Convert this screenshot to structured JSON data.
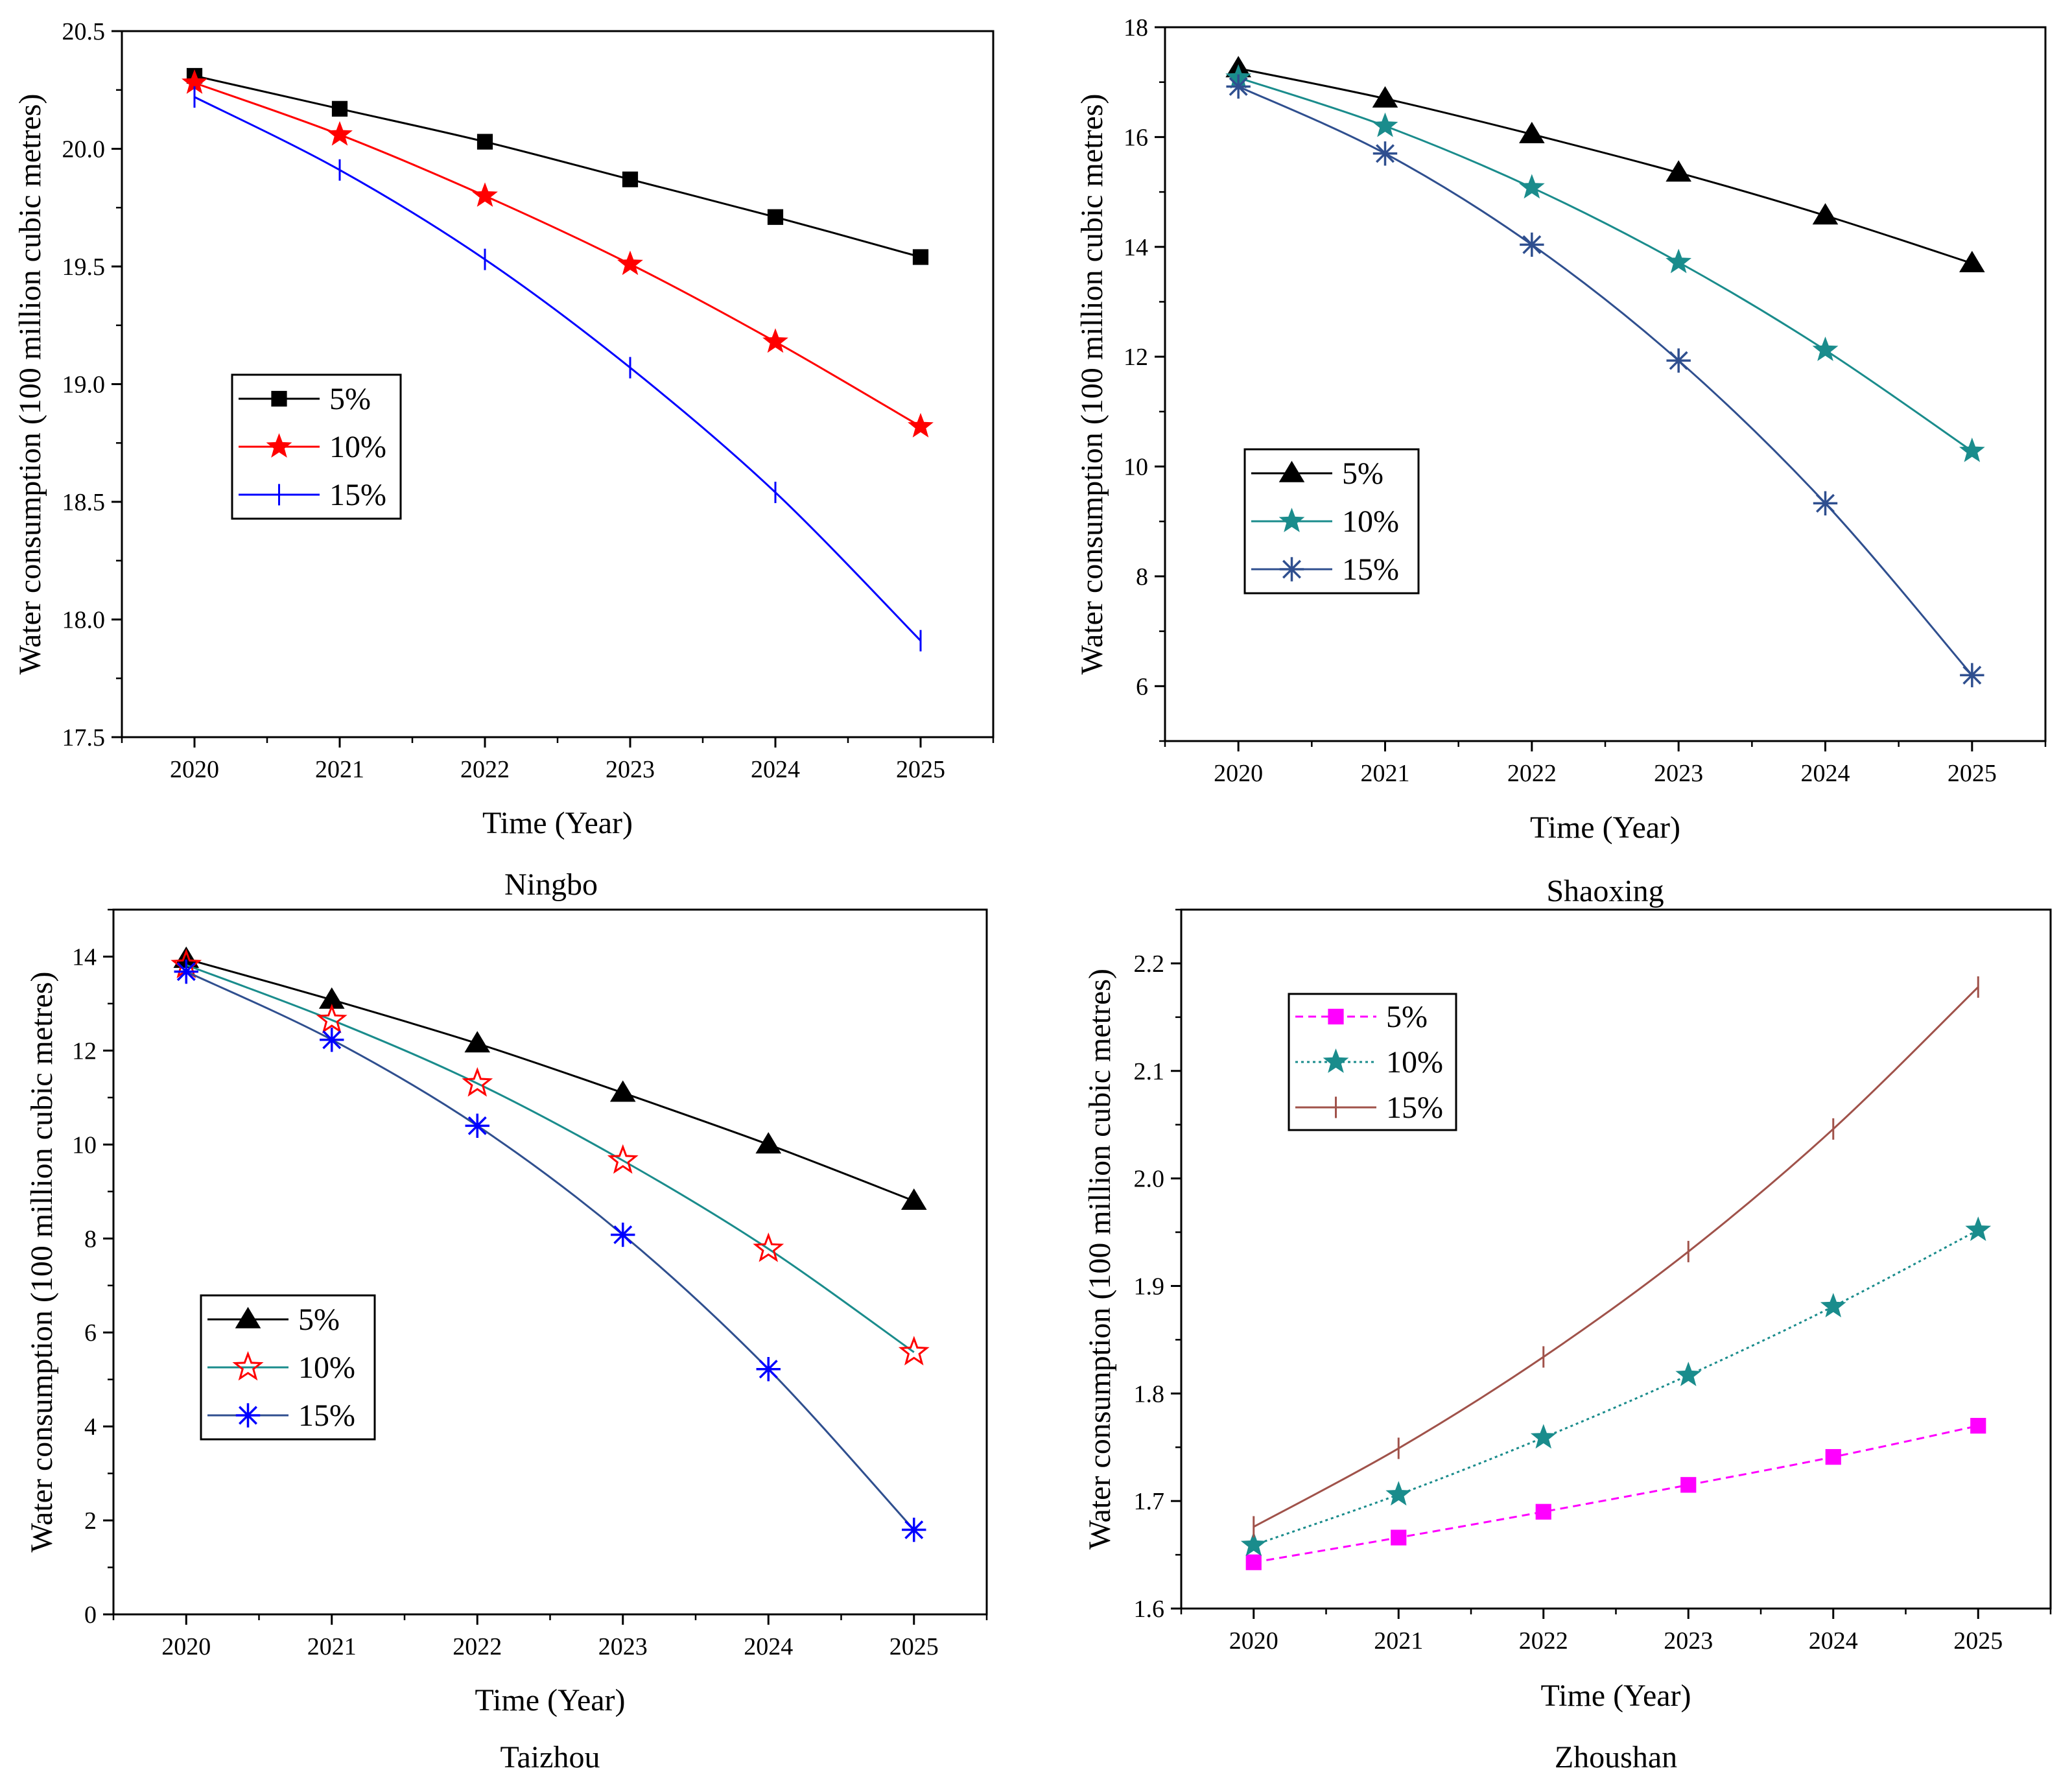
{
  "chart_data": [
    {
      "type": "line",
      "title": "Ningbo",
      "xlabel": "Time (Year)",
      "ylabel": "Water consumption (100 million cubic metres)",
      "x": [
        2020,
        2021,
        2022,
        2023,
        2024,
        2025
      ],
      "xlim": [
        2019.5,
        2025.5
      ],
      "ylim": [
        17.5,
        20.5
      ],
      "yticks": [
        17.5,
        18.0,
        18.5,
        19.0,
        19.5,
        20.0,
        20.5
      ],
      "ytick_labels": [
        "17.5",
        "18.0",
        "18.5",
        "19.0",
        "19.5",
        "20.0",
        "20.5"
      ],
      "legend_position": "center-left",
      "series": [
        {
          "name": "5%",
          "color": "#000000",
          "marker": "square",
          "dash": "solid",
          "values": [
            20.31,
            20.17,
            20.03,
            19.87,
            19.71,
            19.54
          ]
        },
        {
          "name": "10%",
          "color": "#ff0000",
          "marker": "star",
          "dash": "solid",
          "values": [
            20.28,
            20.06,
            19.8,
            19.51,
            19.18,
            18.82
          ]
        },
        {
          "name": "15%",
          "color": "#0000ff",
          "marker": "vbar",
          "dash": "solid",
          "values": [
            20.22,
            19.91,
            19.53,
            19.07,
            18.54,
            17.91
          ]
        }
      ]
    },
    {
      "type": "line",
      "title": "Shaoxing",
      "xlabel": "Time (Year)",
      "ylabel": "Water consumption (100 million cubic metres)",
      "x": [
        2020,
        2021,
        2022,
        2023,
        2024,
        2025
      ],
      "xlim": [
        2019.5,
        2025.5
      ],
      "ylim": [
        5,
        18
      ],
      "yticks": [
        6,
        8,
        10,
        12,
        14,
        16,
        18
      ],
      "ytick_labels": [
        "6",
        "8",
        "10",
        "12",
        "14",
        "16",
        "18"
      ],
      "legend_position": "center-left",
      "series": [
        {
          "name": "5%",
          "color": "#000000",
          "marker": "triangle",
          "dash": "solid",
          "values": [
            17.25,
            16.7,
            16.05,
            15.35,
            14.57,
            13.7
          ]
        },
        {
          "name": "10%",
          "color": "#1a8c8c",
          "marker": "star",
          "dash": "solid",
          "values": [
            17.08,
            16.2,
            15.08,
            13.72,
            12.12,
            10.28
          ]
        },
        {
          "name": "15%",
          "color": "#2f4f8f",
          "marker": "asterisk",
          "dash": "solid",
          "values": [
            16.92,
            15.7,
            14.04,
            11.93,
            9.33,
            6.2
          ]
        }
      ]
    },
    {
      "type": "line",
      "title": "Taizhou",
      "xlabel": "Time (Year)",
      "ylabel": "Water consumption (100 million cubic metres)",
      "x": [
        2020,
        2021,
        2022,
        2023,
        2024,
        2025
      ],
      "xlim": [
        2019.5,
        2025.5
      ],
      "ylim": [
        0,
        15
      ],
      "yticks": [
        0,
        2,
        4,
        6,
        8,
        10,
        12,
        14
      ],
      "ytick_labels": [
        "0",
        "2",
        "4",
        "6",
        "8",
        "10",
        "12",
        "14"
      ],
      "legend_position": "lower-left",
      "series": [
        {
          "name": "5%",
          "color": "#000000",
          "marker": "triangle",
          "dash": "solid",
          "values": [
            13.95,
            13.08,
            12.15,
            11.1,
            10.0,
            8.8
          ]
        },
        {
          "name": "10%",
          "color": "#1a8c8c",
          "marker": "open-star-red",
          "dash": "solid",
          "values": [
            13.82,
            12.65,
            11.3,
            9.66,
            7.78,
            5.58
          ]
        },
        {
          "name": "15%",
          "color": "#2f4f8f",
          "marker": "asterisk-blue",
          "dash": "solid",
          "values": [
            13.68,
            12.23,
            10.4,
            8.08,
            5.22,
            1.8
          ]
        }
      ]
    },
    {
      "type": "line",
      "title": "Zhoushan",
      "xlabel": "Time (Year)",
      "ylabel": "Water consumption (100 million cubic metres)",
      "x": [
        2020,
        2021,
        2022,
        2023,
        2024,
        2025
      ],
      "xlim": [
        2019.5,
        2025.5
      ],
      "ylim": [
        1.6,
        2.25
      ],
      "yticks": [
        1.6,
        1.7,
        1.8,
        1.9,
        2.0,
        2.1,
        2.2
      ],
      "ytick_labels": [
        "1.6",
        "1.7",
        "1.8",
        "1.9",
        "2.0",
        "2.1",
        "2.2"
      ],
      "legend_position": "top-left",
      "series": [
        {
          "name": "5%",
          "color": "#ff00ff",
          "marker": "square",
          "dash": "dashed",
          "values": [
            1.643,
            1.666,
            1.69,
            1.715,
            1.741,
            1.77
          ]
        },
        {
          "name": "10%",
          "color": "#1a8c8c",
          "marker": "star",
          "dash": "dotted",
          "values": [
            1.659,
            1.706,
            1.759,
            1.817,
            1.881,
            1.952
          ]
        },
        {
          "name": "15%",
          "color": "#a0524a",
          "marker": "vbar",
          "dash": "solid",
          "values": [
            1.676,
            1.749,
            1.834,
            1.932,
            2.046,
            2.178
          ]
        }
      ]
    }
  ]
}
